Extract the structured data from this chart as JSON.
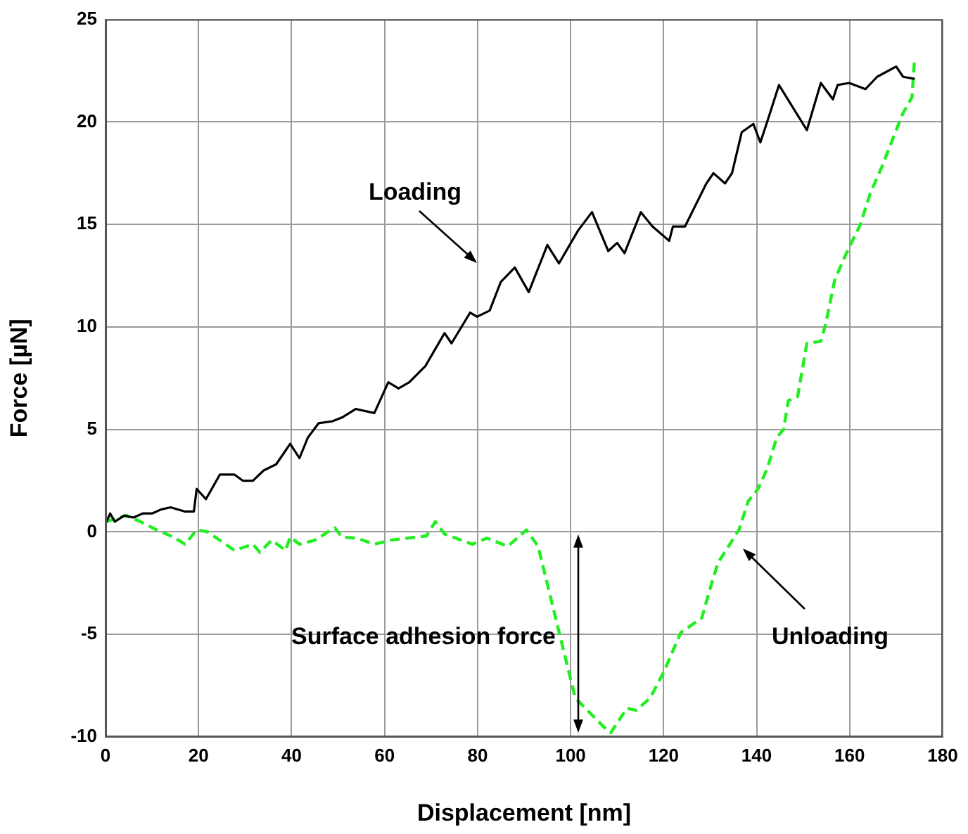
{
  "chart_data": {
    "type": "line",
    "xlabel": "Displacement [nm]",
    "ylabel": "Force [µN]",
    "xlim": [
      0,
      180
    ],
    "xticks": [
      0,
      20,
      40,
      60,
      80,
      100,
      120,
      140,
      160,
      180
    ],
    "ylim": [
      -10,
      25
    ],
    "yticks": [
      -10,
      -5,
      0,
      5,
      10,
      15,
      20,
      25
    ],
    "grid": true,
    "legend": false,
    "marker": "none",
    "series": [
      {
        "color": "#000000",
        "line_style": "solid",
        "x": [
          0,
          1,
          2,
          4,
          6,
          8,
          10,
          12,
          14,
          17,
          19,
          19.6,
          21.6,
          24.6,
          27.7,
          29.5,
          31.7,
          34,
          36.7,
          39.7,
          41.7,
          43.5,
          45.8,
          48.8,
          51,
          53.8,
          57.8,
          60.8,
          63,
          65.3,
          68.8,
          72.9,
          74.4,
          78.4,
          79.9,
          82.6,
          85,
          88,
          91,
          95,
          97.5,
          101.6,
          104.6,
          108.1,
          110,
          111.6,
          115.1,
          117.6,
          121.2,
          122,
          124.6,
          129.2,
          130.7,
          133.2,
          134.7,
          136.8,
          139.3,
          140.8,
          142.4,
          144.8,
          150.8,
          153.8,
          156.4,
          157.4,
          159.9,
          163.4,
          165.9,
          170,
          171.5,
          174
        ],
        "values": [
          0.4,
          0.9,
          0.5,
          0.8,
          0.7,
          0.9,
          0.9,
          1.1,
          1.2,
          1.0,
          1.0,
          2.1,
          1.6,
          2.8,
          2.8,
          2.5,
          2.5,
          3.0,
          3.3,
          4.3,
          3.6,
          4.6,
          5.3,
          5.4,
          5.6,
          6.0,
          5.8,
          7.3,
          7.0,
          7.3,
          8.1,
          9.7,
          9.2,
          10.7,
          10.5,
          10.8,
          12.2,
          12.9,
          11.7,
          14.0,
          13.1,
          14.7,
          15.6,
          13.7,
          14.1,
          13.6,
          15.6,
          14.9,
          14.2,
          14.9,
          14.9,
          17.0,
          17.5,
          17.0,
          17.5,
          19.5,
          19.9,
          19.0,
          20.1,
          21.8,
          19.6,
          21.9,
          21.1,
          21.8,
          21.9,
          21.6,
          22.2,
          22.7,
          22.2,
          22.1
        ]
      },
      {
        "color": "#22ee22",
        "line_style": "dashed",
        "x": [
          0,
          4.5,
          7.5,
          11,
          14.6,
          17.1,
          19.6,
          22,
          27.7,
          31.7,
          33.2,
          35.7,
          38.7,
          39.7,
          41.7,
          45,
          49.3,
          50.8,
          54,
          57.8,
          61.3,
          65,
          69,
          70.9,
          72.9,
          78.9,
          82,
          86.5,
          90.5,
          93,
          101,
          107.1,
          108.6,
          112.1,
          114.1,
          117.1,
          120.1,
          123.7,
          128.2,
          130.2,
          131.7,
          136.2,
          138.2,
          140.3,
          142.3,
          144.3,
          145.8,
          146.8,
          148.8,
          150.8,
          153.8,
          154.8,
          156.8,
          159.3,
          162.3,
          164.4,
          166.9,
          171.4,
          173.4,
          173.9
        ],
        "values": [
          0.5,
          0.8,
          0.5,
          0.1,
          -0.25,
          -0.6,
          0.1,
          0.0,
          -0.9,
          -0.6,
          -1.0,
          -0.4,
          -0.9,
          -0.25,
          -0.6,
          -0.4,
          0.2,
          -0.25,
          -0.3,
          -0.6,
          -0.4,
          -0.3,
          -0.2,
          0.5,
          -0.1,
          -0.6,
          -0.3,
          -0.7,
          0.1,
          -0.7,
          -8.1,
          -9.5,
          -9.8,
          -8.6,
          -8.7,
          -8.1,
          -6.8,
          -4.9,
          -4.2,
          -2.6,
          -1.5,
          0.1,
          1.5,
          2.1,
          3.1,
          4.6,
          5.0,
          6.4,
          6.6,
          9.2,
          9.3,
          10.1,
          12.3,
          13.6,
          15.0,
          16.5,
          17.8,
          20.4,
          21.2,
          22.9
        ]
      }
    ],
    "annotations": [
      "Loading",
      "Surface adhesion force",
      "Unloading"
    ]
  }
}
